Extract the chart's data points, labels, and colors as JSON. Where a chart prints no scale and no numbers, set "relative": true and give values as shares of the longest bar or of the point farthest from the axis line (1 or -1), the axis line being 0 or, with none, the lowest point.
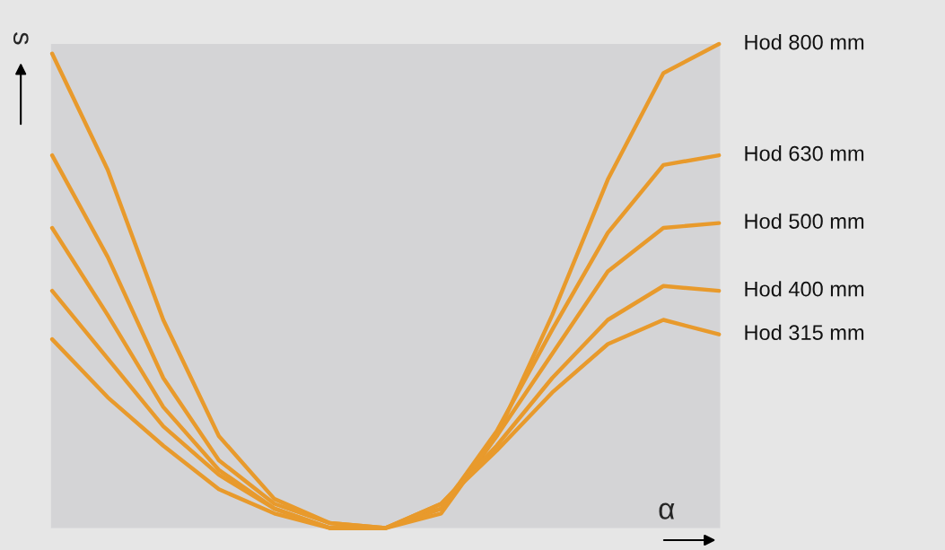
{
  "chart_data": {
    "type": "line",
    "relative": true,
    "xlabel": "α",
    "ylabel": "s",
    "legend": false,
    "grid": false,
    "categories": [
      null,
      null,
      null,
      null,
      null,
      null,
      null,
      null,
      null,
      null,
      null,
      null,
      null
    ],
    "series": [
      {
        "name": "Hod 800 mm",
        "color": "#e89a2c",
        "values": [
          0.98,
          0.74,
          0.43,
          0.19,
          0.06,
          0.01,
          0,
          0.03,
          0.19,
          0.44,
          0.72,
          0.94,
          1.0
        ]
      },
      {
        "name": "Hod 630 mm",
        "color": "#e89a2c",
        "values": [
          0.77,
          0.56,
          0.31,
          0.14,
          0.05,
          0.01,
          0,
          0.04,
          0.2,
          0.41,
          0.61,
          0.75,
          0.77
        ]
      },
      {
        "name": "Hod 500 mm",
        "color": "#e89a2c",
        "values": [
          0.62,
          0.44,
          0.25,
          0.12,
          0.04,
          0.0,
          0,
          0.04,
          0.19,
          0.36,
          0.53,
          0.62,
          0.63
        ]
      },
      {
        "name": "Hod 400 mm",
        "color": "#e89a2c",
        "values": [
          0.49,
          0.35,
          0.21,
          0.11,
          0.04,
          0.0,
          0,
          0.05,
          0.17,
          0.31,
          0.43,
          0.5,
          0.49
        ]
      },
      {
        "name": "Hod 315 mm",
        "color": "#e89a2c",
        "values": [
          0.39,
          0.27,
          0.17,
          0.08,
          0.03,
          0.0,
          0,
          0.05,
          0.16,
          0.28,
          0.38,
          0.43,
          0.4
        ]
      }
    ]
  }
}
